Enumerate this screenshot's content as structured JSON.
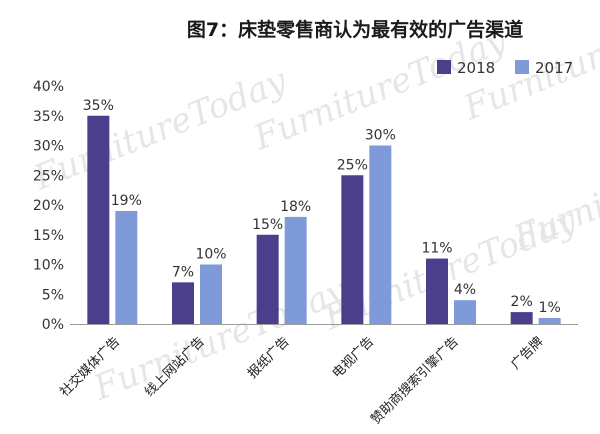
{
  "chart_data": {
    "type": "bar",
    "title": "图7：床垫零售商认为最有效的广告渠道",
    "categories": [
      "社交媒体广告",
      "线上网站广告",
      "报纸广告",
      "电视广告",
      "赞助商搜索引擎广告",
      "广告牌"
    ],
    "series": [
      {
        "name": "2018",
        "values": [
          35,
          7,
          15,
          25,
          11,
          2
        ],
        "color": "#4b3f8c"
      },
      {
        "name": "2017",
        "values": [
          19,
          10,
          18,
          30,
          4,
          1
        ],
        "color": "#7e9ad8"
      }
    ],
    "data_labels": [
      [
        "35%",
        "7%",
        "15%",
        "25%",
        "11%",
        "2%"
      ],
      [
        "19%",
        "10%",
        "18%",
        "30%",
        "4%",
        "1%"
      ]
    ],
    "ylim": [
      0,
      40
    ],
    "yticks": [
      "0%",
      "5%",
      "10%",
      "15%",
      "20%",
      "25%",
      "30%",
      "35%",
      "40%"
    ],
    "xlabel": "",
    "ylabel": "",
    "legend_position": "top-right",
    "grid": false,
    "watermark": "FurnitureToday"
  }
}
